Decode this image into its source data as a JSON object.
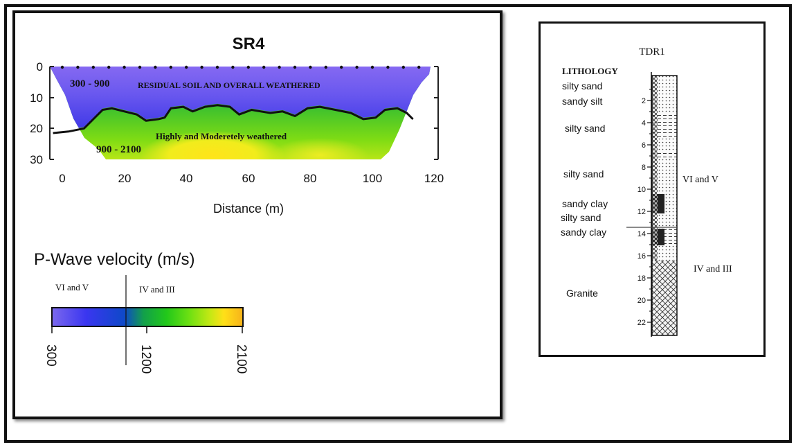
{
  "section": {
    "title": "SR4",
    "xlabel": "Distance (m)",
    "x_ticks": [
      "0",
      "20",
      "40",
      "60",
      "80",
      "100",
      "120"
    ],
    "y_ticks": [
      "0",
      "10",
      "20",
      "30"
    ],
    "upper_range": "300 - 900",
    "upper_label": "RESIDUAL SOIL AND OVERALL WEATHERED",
    "lower_label": "Highly and Moderetely weathered",
    "lower_range": "900 - 2100",
    "interface_depth": [
      {
        "x": -3,
        "d": 21.5
      },
      {
        "x": 2,
        "d": 21
      },
      {
        "x": 7,
        "d": 20
      },
      {
        "x": 10,
        "d": 17
      },
      {
        "x": 13,
        "d": 14
      },
      {
        "x": 16,
        "d": 13.5
      },
      {
        "x": 20,
        "d": 14.5
      },
      {
        "x": 24,
        "d": 15.5
      },
      {
        "x": 27,
        "d": 17.5
      },
      {
        "x": 31,
        "d": 17
      },
      {
        "x": 33,
        "d": 16.5
      },
      {
        "x": 35,
        "d": 13.5
      },
      {
        "x": 39,
        "d": 13
      },
      {
        "x": 42,
        "d": 14.5
      },
      {
        "x": 46,
        "d": 13
      },
      {
        "x": 50,
        "d": 12.5
      },
      {
        "x": 54,
        "d": 13
      },
      {
        "x": 57,
        "d": 15.5
      },
      {
        "x": 61,
        "d": 14
      },
      {
        "x": 64,
        "d": 14.5
      },
      {
        "x": 67,
        "d": 15
      },
      {
        "x": 71,
        "d": 14.5
      },
      {
        "x": 75,
        "d": 16
      },
      {
        "x": 79,
        "d": 13.5
      },
      {
        "x": 83,
        "d": 13
      },
      {
        "x": 88,
        "d": 14
      },
      {
        "x": 93,
        "d": 15
      },
      {
        "x": 97,
        "d": 17
      },
      {
        "x": 101,
        "d": 16.5
      },
      {
        "x": 104,
        "d": 14
      },
      {
        "x": 108,
        "d": 13.5
      },
      {
        "x": 111,
        "d": 15
      },
      {
        "x": 113,
        "d": 17
      }
    ]
  },
  "legend": {
    "title": "P-Wave velocity (m/s)",
    "class_left": "VI and V",
    "class_right": "IV and III",
    "ticks": [
      "300",
      "1200",
      "2100"
    ],
    "colors": [
      "#7b68ee",
      "#3a36f0",
      "#0e49c8",
      "#12a04a",
      "#22c81a",
      "#6ee012",
      "#c6e814",
      "#ffe018",
      "#f7b21a"
    ]
  },
  "borehole": {
    "title": "TDR1",
    "lithology_header": "LITHOLOGY",
    "layers": [
      "silty sand",
      "sandy silt",
      "silty sand",
      "silty sand",
      "sandy clay",
      "silty sand",
      "sandy clay",
      "Granite"
    ],
    "depth_ticks": [
      "2",
      "4",
      "6",
      "8",
      "10",
      "12",
      "14",
      "16",
      "18",
      "20",
      "22"
    ],
    "grade_upper": "VI and V",
    "grade_lower": "IV and III"
  }
}
